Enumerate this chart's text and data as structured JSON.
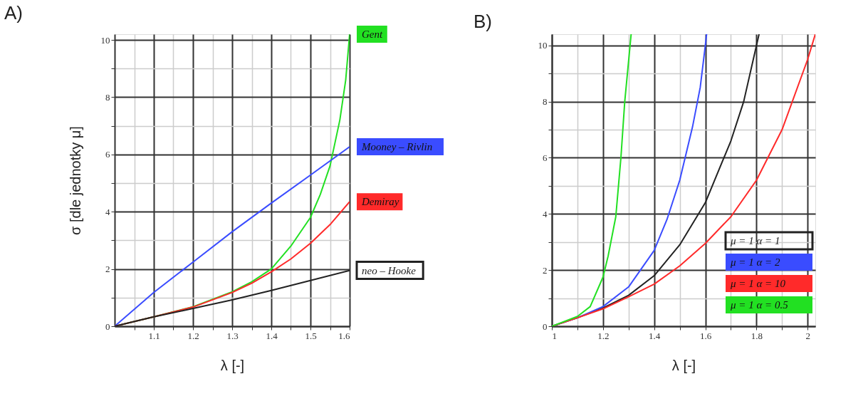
{
  "chart_data": [
    {
      "type": "line",
      "title": "A)",
      "xlabel": "λ [-]",
      "ylabel": "σ [dle jednotky μ]",
      "xlim": [
        1,
        1.6
      ],
      "ylim": [
        0,
        10.2
      ],
      "grid": true,
      "xticks": [
        {
          "value": 1.05,
          "label": null
        },
        1.1,
        {
          "value": 1.15,
          "label": null
        },
        1.2,
        {
          "value": 1.25,
          "label": null
        },
        1.3,
        {
          "value": 1.35,
          "label": null
        },
        1.4,
        {
          "value": 1.45,
          "label": null
        },
        1.5,
        {
          "value": 1.55,
          "label": null
        },
        1.6
      ],
      "yticks": [
        0,
        {
          "value": 1,
          "label": null
        },
        2,
        {
          "value": 3,
          "label": null
        },
        4,
        {
          "value": 5,
          "label": null
        },
        6,
        {
          "value": 7,
          "label": null
        },
        8,
        {
          "value": 9,
          "label": null
        },
        10
      ],
      "series": [
        {
          "name": "Gent",
          "color": "#22e022",
          "x": [
            1,
            1.1,
            1.2,
            1.3,
            1.35,
            1.4,
            1.45,
            1.5,
            1.525,
            1.55,
            1.575,
            1.59,
            1.6
          ],
          "values": [
            0,
            0.33,
            0.68,
            1.2,
            1.55,
            2.0,
            2.8,
            3.8,
            4.6,
            5.6,
            7.2,
            8.6,
            10.2
          ]
        },
        {
          "name": "Mooney – Rivlin",
          "color": "#3a4cff",
          "x": [
            1,
            1.1,
            1.2,
            1.3,
            1.4,
            1.5,
            1.6
          ],
          "values": [
            0,
            1.18,
            2.24,
            3.3,
            4.3,
            5.28,
            6.27
          ]
        },
        {
          "name": "Demiray",
          "color": "#ff2a2a",
          "x": [
            1,
            1.1,
            1.2,
            1.3,
            1.35,
            1.4,
            1.45,
            1.5,
            1.55,
            1.6
          ],
          "values": [
            0,
            0.33,
            0.67,
            1.18,
            1.5,
            1.9,
            2.35,
            2.9,
            3.55,
            4.35
          ]
        },
        {
          "name": "neo – Hooke",
          "color": "#222222",
          "x": [
            1,
            1.1,
            1.2,
            1.3,
            1.4,
            1.5,
            1.6
          ],
          "values": [
            0,
            0.33,
            0.62,
            0.92,
            1.25,
            1.6,
            1.95
          ]
        }
      ]
    },
    {
      "type": "line",
      "title": "B)",
      "xlabel": "λ [-]",
      "xlim": [
        1,
        2.03
      ],
      "ylim": [
        0,
        10.4
      ],
      "grid": true,
      "legend": "bottom right",
      "xticks": [
        1,
        {
          "value": 1.1,
          "label": null
        },
        1.2,
        {
          "value": 1.3,
          "label": null
        },
        1.4,
        {
          "value": 1.5,
          "label": null
        },
        1.6,
        {
          "value": 1.7,
          "label": null
        },
        1.8,
        {
          "value": 1.9,
          "label": null
        },
        2
      ],
      "yticks": [
        0,
        {
          "value": 1,
          "label": null
        },
        2,
        {
          "value": 3,
          "label": null
        },
        4,
        {
          "value": 5,
          "label": null
        },
        6,
        {
          "value": 7,
          "label": null
        },
        8,
        {
          "value": 9,
          "label": null
        },
        10
      ],
      "series": [
        {
          "name": "μ = 1   α = 1",
          "color": "#222222",
          "x": [
            1,
            1.1,
            1.2,
            1.3,
            1.4,
            1.5,
            1.6,
            1.7,
            1.75,
            1.8,
            1.81
          ],
          "values": [
            0,
            0.3,
            0.65,
            1.1,
            1.8,
            2.9,
            4.4,
            6.6,
            8.0,
            10.0,
            10.4
          ]
        },
        {
          "name": "μ = 1   α = 2",
          "color": "#3a4cff",
          "x": [
            1,
            1.1,
            1.2,
            1.3,
            1.4,
            1.45,
            1.5,
            1.55,
            1.58,
            1.6,
            1.605
          ],
          "values": [
            0,
            0.3,
            0.7,
            1.4,
            2.7,
            3.8,
            5.2,
            7.1,
            8.5,
            10.0,
            10.4
          ]
        },
        {
          "name": "μ = 1   α = 10",
          "color": "#ff2a2a",
          "x": [
            1,
            1.1,
            1.2,
            1.3,
            1.4,
            1.5,
            1.6,
            1.7,
            1.8,
            1.9,
            2.0,
            2.03
          ],
          "values": [
            0,
            0.3,
            0.62,
            1.05,
            1.5,
            2.15,
            2.95,
            3.9,
            5.2,
            7.0,
            9.5,
            10.4
          ]
        },
        {
          "name": "μ = 1   α = 0.5",
          "color": "#22e022",
          "x": [
            1,
            1.1,
            1.15,
            1.2,
            1.22,
            1.25,
            1.27,
            1.285,
            1.31
          ],
          "values": [
            0,
            0.35,
            0.7,
            1.75,
            2.5,
            3.9,
            6.0,
            8.0,
            10.4
          ]
        }
      ]
    }
  ]
}
